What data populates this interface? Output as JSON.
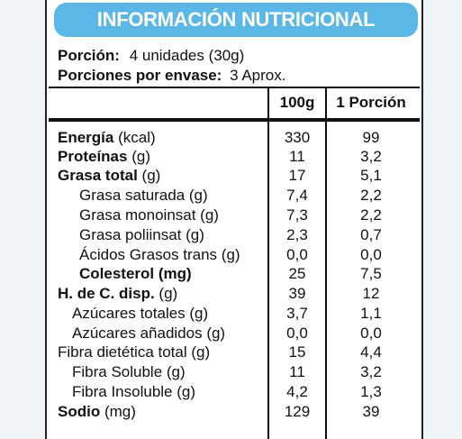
{
  "title": "INFORMACIÓN NUTRICIONAL",
  "serving": {
    "label": "Porción:",
    "value": "4 unidades (30g)"
  },
  "servings_per_container": {
    "label": "Porciones por envase:",
    "value": "3 Aprox."
  },
  "columns": {
    "per100": "100g",
    "per_portion": "1 Porción"
  },
  "rows": [
    {
      "name": "Energía",
      "unit": " (kcal)",
      "v100": "330",
      "vport": "99"
    },
    {
      "name": "Proteínas",
      "unit": " (g)",
      "v100": "11",
      "vport": "3,2"
    },
    {
      "name": "Grasa total",
      "unit": " (g)",
      "v100": "17",
      "vport": "5,1"
    },
    {
      "name": "Grasa saturada (g)",
      "unit": "",
      "v100": "7,4",
      "vport": "2,2"
    },
    {
      "name": "Grasa monoinsat (g)",
      "unit": "",
      "v100": "7,3",
      "vport": "2,2"
    },
    {
      "name": "Grasa poliinsat (g)",
      "unit": "",
      "v100": "2,3",
      "vport": "0,7"
    },
    {
      "name": "Ácidos Grasos trans (g)",
      "unit": "",
      "v100": "0,0",
      "vport": "0,0"
    },
    {
      "name": "Colesterol (mg)",
      "unit": "",
      "v100": "25",
      "vport": "7,5"
    },
    {
      "name": "H. de C. disp.",
      "unit": " (g)",
      "v100": "39",
      "vport": "12"
    },
    {
      "name": "Azúcares totales (g)",
      "unit": "",
      "v100": "3,7",
      "vport": "1,1"
    },
    {
      "name": "Azúcares añadidos (g)",
      "unit": "",
      "v100": "0,0",
      "vport": "0,0"
    },
    {
      "name": "Fibra dietética total (g)",
      "unit": "",
      "v100": "15",
      "vport": "4,4"
    },
    {
      "name": "Fibra Soluble (g)",
      "unit": "",
      "v100": "11",
      "vport": "3,2"
    },
    {
      "name": "Fibra Insoluble (g)",
      "unit": "",
      "v100": "4,2",
      "vport": "1,3"
    },
    {
      "name": "Sodio",
      "unit": " (mg)",
      "v100": "129",
      "vport": "39"
    }
  ]
}
